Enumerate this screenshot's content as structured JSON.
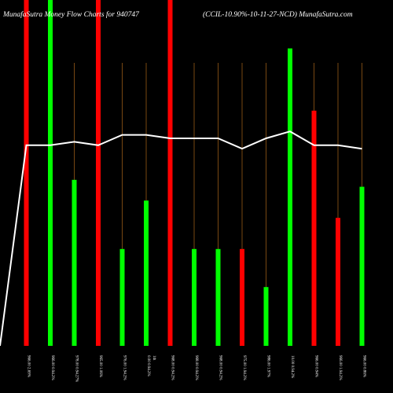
{
  "header": {
    "left_title": "MunafaSutra  Money Flow  Charts for 940747",
    "right_title": "(CCIL-10.90%-10-11-27-NCD) MunafaSutra.com"
  },
  "colors": {
    "background": "#000000",
    "up": "#00ff00",
    "down": "#ff0000",
    "line": "#ffffff",
    "guide": "#c8781e"
  },
  "chart_data": {
    "type": "bar",
    "note_scale": "bar heights in relative units 0-100 of the plot height",
    "categories": [
      "966.00 2.69%",
      "966.00 0.94.2%",
      "978.00 0.94.27%",
      "965.00 1.06%",
      "976.00 1.94.2%",
      "1th",
      "0.00 0.94.2%",
      "968.00 0.94.2%",
      "968.00 0.94.2%",
      "975.00 1.94.2%",
      "986.00 1.97%",
      "10.00 0.94.2%",
      "966.00 0.94%",
      "966.00 1.94.2%",
      "966.00 0.86%"
    ],
    "x_label_lines": [
      [
        "966.00 2.69%",
        ""
      ],
      [
        "966.00 0.94.2%",
        ""
      ],
      [
        "978.00 0.94.27%",
        ""
      ],
      [
        "965.00 1.06%",
        ""
      ],
      [
        "976.00 1.94.2%",
        ""
      ],
      [
        "0.00 0.94.2%",
        "1th"
      ],
      [
        "968.00 0.94.2%",
        ""
      ],
      [
        "968.00 0.94.2%",
        ""
      ],
      [
        "968.00 0.94.2%",
        ""
      ],
      [
        "975.00 1.94.2%",
        ""
      ],
      [
        "986.00 1.97%",
        ""
      ],
      [
        "10.00 0.94.2%",
        ""
      ],
      [
        "966.00 0.94%",
        ""
      ],
      [
        "966.00 1.94.2%",
        ""
      ],
      [
        "966.00 0.86%",
        ""
      ]
    ],
    "series": [
      {
        "values": [
          100,
          100,
          48,
          100,
          28,
          42,
          100,
          28,
          28,
          28,
          17,
          86,
          68,
          37,
          46
        ],
        "colors": [
          "down",
          "up",
          "up",
          "down",
          "up",
          "up",
          "down",
          "up",
          "up",
          "down",
          "up",
          "up",
          "down",
          "down",
          "up"
        ]
      },
      {
        "values": [
          58,
          58,
          59,
          58,
          61,
          61,
          60,
          60,
          60,
          57,
          60,
          62,
          58,
          58,
          57
        ],
        "start_value": 0
      }
    ],
    "ylim": [
      0,
      100
    ]
  }
}
